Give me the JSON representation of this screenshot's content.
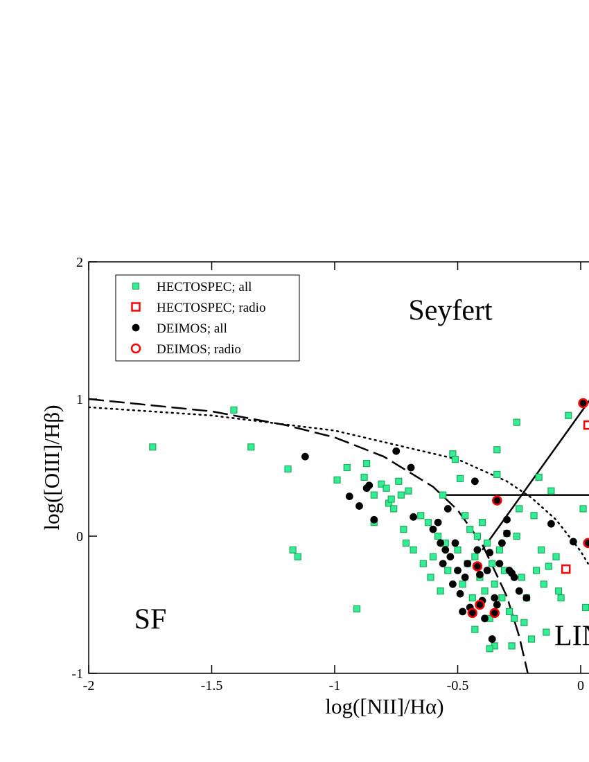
{
  "chart_data": {
    "type": "scatter",
    "xlabel": "log([NII]/Hα)",
    "ylabel": "log([OIII]/Hβ)",
    "xlim": [
      -2,
      0.5
    ],
    "ylim": [
      -1,
      2
    ],
    "xticks": [
      -2,
      -1.5,
      -1,
      -0.5,
      0
    ],
    "yticks": [
      -1,
      0,
      1,
      2
    ],
    "annotations": [
      "Seyfert",
      "SF",
      "LINER"
    ],
    "legend": "upper left",
    "series": [
      {
        "name": "HECTOSPEC; all",
        "marker": "square",
        "filled": true,
        "color": "#33ee99",
        "edge": "#22aa55",
        "x": [
          -1.74,
          -1.41,
          -1.34,
          -1.19,
          -1.17,
          -1.15,
          -0.99,
          -0.95,
          -0.91,
          -0.88,
          -0.87,
          -0.84,
          -0.84,
          -0.81,
          -0.79,
          -0.78,
          -0.77,
          -0.76,
          -0.74,
          -0.73,
          -0.72,
          -0.71,
          -0.7,
          -0.68,
          -0.65,
          -0.64,
          -0.62,
          -0.61,
          -0.6,
          -0.58,
          -0.57,
          -0.56,
          -0.55,
          -0.54,
          -0.52,
          -0.51,
          -0.5,
          -0.49,
          -0.48,
          -0.47,
          -0.46,
          -0.45,
          -0.44,
          -0.43,
          -0.42,
          -0.41,
          -0.4,
          -0.39,
          -0.38,
          -0.37,
          -0.36,
          -0.35,
          -0.34,
          -0.34,
          -0.33,
          -0.32,
          -0.31,
          -0.3,
          -0.29,
          -0.28,
          -0.27,
          -0.26,
          -0.25,
          -0.24,
          -0.23,
          -0.22,
          -0.2,
          -0.19,
          -0.18,
          -0.17,
          -0.16,
          -0.15,
          -0.14,
          -0.13,
          -0.12,
          -0.1,
          -0.09,
          -0.08,
          -0.05,
          -0.26,
          -0.35,
          -0.37,
          -0.43,
          0.01,
          0.02
        ],
        "y": [
          0.65,
          0.92,
          0.65,
          0.49,
          -0.1,
          -0.15,
          0.41,
          0.5,
          -0.53,
          0.43,
          0.53,
          0.3,
          0.1,
          0.38,
          0.35,
          0.24,
          0.27,
          0.2,
          0.4,
          0.3,
          0.05,
          -0.05,
          0.33,
          -0.1,
          0.15,
          -0.2,
          0.1,
          -0.3,
          -0.15,
          0.0,
          -0.4,
          0.3,
          -0.05,
          -0.25,
          0.6,
          0.56,
          -0.1,
          0.42,
          -0.35,
          0.15,
          -0.2,
          0.05,
          -0.45,
          -0.15,
          0.0,
          -0.3,
          0.1,
          -0.4,
          -0.05,
          -0.6,
          -0.2,
          -0.35,
          0.45,
          0.63,
          -0.1,
          -0.45,
          -0.25,
          0.02,
          -0.55,
          -0.8,
          -0.6,
          0.0,
          0.2,
          -0.3,
          -0.63,
          -0.45,
          -0.75,
          0.15,
          -0.25,
          0.43,
          -0.1,
          -0.35,
          -0.7,
          -0.22,
          0.33,
          -0.15,
          -0.4,
          -0.45,
          0.88,
          0.83,
          -0.8,
          -0.82,
          -0.68,
          0.2,
          -0.52
        ]
      },
      {
        "name": "HECTOSPEC; radio",
        "marker": "square",
        "filled": false,
        "color": "#ff0000",
        "x": [
          -0.06,
          0.03
        ],
        "y": [
          -0.24,
          0.81
        ]
      },
      {
        "name": "DEIMOS; all",
        "marker": "circle",
        "filled": true,
        "color": "#000000",
        "x": [
          -1.12,
          -0.94,
          -0.9,
          -0.87,
          -0.86,
          -0.84,
          -0.75,
          -0.69,
          -0.68,
          -0.6,
          -0.58,
          -0.57,
          -0.56,
          -0.55,
          -0.54,
          -0.53,
          -0.52,
          -0.51,
          -0.5,
          -0.49,
          -0.48,
          -0.47,
          -0.46,
          -0.45,
          -0.43,
          -0.42,
          -0.41,
          -0.4,
          -0.39,
          -0.38,
          -0.37,
          -0.36,
          -0.35,
          -0.34,
          -0.33,
          -0.32,
          -0.3,
          -0.3,
          -0.29,
          -0.28,
          -0.27,
          -0.25,
          -0.22,
          -0.12,
          -0.03,
          0.01,
          -0.34,
          -0.42,
          -0.41,
          -0.44,
          -0.35,
          0.03
        ],
        "y": [
          0.58,
          0.29,
          0.22,
          0.35,
          0.37,
          0.12,
          0.62,
          0.5,
          0.14,
          0.05,
          0.1,
          -0.05,
          -0.2,
          -0.1,
          0.2,
          -0.15,
          -0.35,
          -0.05,
          -0.25,
          -0.42,
          -0.55,
          -0.3,
          -0.2,
          -0.52,
          0.4,
          -0.1,
          -0.28,
          -0.47,
          -0.6,
          -0.25,
          -0.12,
          -0.75,
          -0.45,
          -0.5,
          -0.2,
          -0.05,
          0.12,
          0.02,
          -0.25,
          -0.27,
          -0.3,
          -0.4,
          -0.45,
          0.09,
          -0.04,
          0.97,
          0.26,
          -0.22,
          -0.5,
          -0.56,
          -0.56,
          -0.05
        ]
      },
      {
        "name": "DEIMOS; radio",
        "marker": "circle",
        "filled": false,
        "color": "#ff0000",
        "x": [
          0.01,
          -0.34,
          -0.42,
          -0.41,
          -0.44,
          -0.35,
          0.03
        ],
        "y": [
          0.97,
          0.26,
          -0.22,
          -0.5,
          -0.56,
          -0.56,
          -0.05
        ]
      }
    ],
    "curves": [
      {
        "style": "dashed",
        "x": [
          -2,
          -1.5,
          -1.2,
          -1,
          -0.8,
          -0.6,
          -0.5,
          -0.4,
          -0.3,
          -0.25,
          -0.215
        ],
        "y": [
          1.0,
          0.91,
          0.81,
          0.72,
          0.58,
          0.36,
          0.19,
          -0.06,
          -0.44,
          -0.73,
          -1.0
        ]
      },
      {
        "style": "dotted",
        "x": [
          -2,
          -1.5,
          -1,
          -0.5,
          -0.3,
          -0.2,
          -0.1,
          0,
          0.03
        ],
        "y": [
          0.94,
          0.88,
          0.77,
          0.56,
          0.4,
          0.28,
          0.12,
          -0.11,
          -0.2
        ]
      },
      {
        "style": "solid",
        "x": [
          -0.55,
          0.5
        ],
        "y": [
          0.3,
          0.3
        ]
      },
      {
        "style": "solid",
        "x": [
          -0.4,
          0.1
        ],
        "y": [
          -0.1,
          1.15
        ]
      }
    ]
  }
}
